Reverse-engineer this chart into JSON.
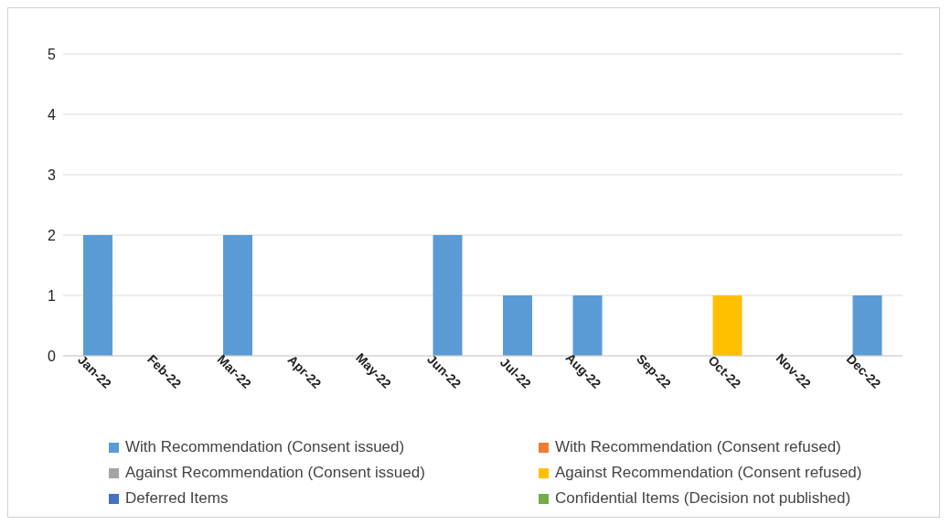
{
  "chart_data": {
    "type": "bar",
    "stacked": true,
    "categories": [
      "Jan-22",
      "Feb-22",
      "Mar-22",
      "Apr-22",
      "May-22",
      "Jun-22",
      "Jul-22",
      "Aug-22",
      "Sep-22",
      "Oct-22",
      "Nov-22",
      "Dec-22"
    ],
    "series": [
      {
        "name": "With Recommendation (Consent issued)",
        "color": "#5b9bd5",
        "values": [
          2,
          0,
          2,
          0,
          0,
          2,
          1,
          1,
          0,
          0,
          0,
          1
        ]
      },
      {
        "name": "With Recommendation (Consent refused)",
        "color": "#ed7d31",
        "values": [
          0,
          0,
          0,
          0,
          0,
          0,
          0,
          0,
          0,
          0,
          0,
          0
        ]
      },
      {
        "name": "Against Recommendation (Consent issued)",
        "color": "#a5a5a5",
        "values": [
          0,
          0,
          0,
          0,
          0,
          0,
          0,
          0,
          0,
          0,
          0,
          0
        ]
      },
      {
        "name": "Against Recommendation (Consent refused)",
        "color": "#ffc000",
        "values": [
          0,
          0,
          0,
          0,
          0,
          0,
          0,
          0,
          0,
          1,
          0,
          0
        ]
      },
      {
        "name": "Deferred Items",
        "color": "#4472c4",
        "values": [
          0,
          0,
          0,
          0,
          0,
          0,
          0,
          0,
          0,
          0,
          0,
          0
        ]
      },
      {
        "name": "Confidential Items (Decision not published)",
        "color": "#70ad47",
        "values": [
          0,
          0,
          0,
          0,
          0,
          0,
          0,
          0,
          0,
          0,
          0,
          0
        ]
      }
    ],
    "ylim": [
      0,
      5
    ],
    "yticks": [
      0,
      1,
      2,
      3,
      4,
      5
    ],
    "grid": "y",
    "legend": "bottom"
  }
}
